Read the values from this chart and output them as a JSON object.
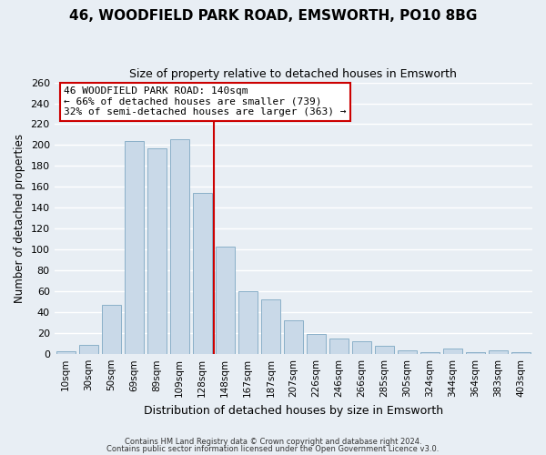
{
  "title": "46, WOODFIELD PARK ROAD, EMSWORTH, PO10 8BG",
  "subtitle": "Size of property relative to detached houses in Emsworth",
  "xlabel": "Distribution of detached houses by size in Emsworth",
  "ylabel": "Number of detached properties",
  "bar_labels": [
    "10sqm",
    "30sqm",
    "50sqm",
    "69sqm",
    "89sqm",
    "109sqm",
    "128sqm",
    "148sqm",
    "167sqm",
    "187sqm",
    "207sqm",
    "226sqm",
    "246sqm",
    "266sqm",
    "285sqm",
    "305sqm",
    "324sqm",
    "344sqm",
    "364sqm",
    "383sqm",
    "403sqm"
  ],
  "bar_values": [
    3,
    9,
    47,
    204,
    197,
    206,
    154,
    103,
    60,
    52,
    32,
    19,
    15,
    12,
    8,
    4,
    2,
    5,
    2,
    4,
    2
  ],
  "bar_color": "#c9d9e8",
  "bar_edge_color": "#8ab0c8",
  "vline_color": "#cc0000",
  "ylim": [
    0,
    260
  ],
  "yticks": [
    0,
    20,
    40,
    60,
    80,
    100,
    120,
    140,
    160,
    180,
    200,
    220,
    240,
    260
  ],
  "annotation_title": "46 WOODFIELD PARK ROAD: 140sqm",
  "annotation_line1": "← 66% of detached houses are smaller (739)",
  "annotation_line2": "32% of semi-detached houses are larger (363) →",
  "annotation_box_color": "#ffffff",
  "annotation_box_edge_color": "#cc0000",
  "footer_line1": "Contains HM Land Registry data © Crown copyright and database right 2024.",
  "footer_line2": "Contains public sector information licensed under the Open Government Licence v3.0.",
  "background_color": "#e8eef4",
  "grid_color": "#ffffff"
}
